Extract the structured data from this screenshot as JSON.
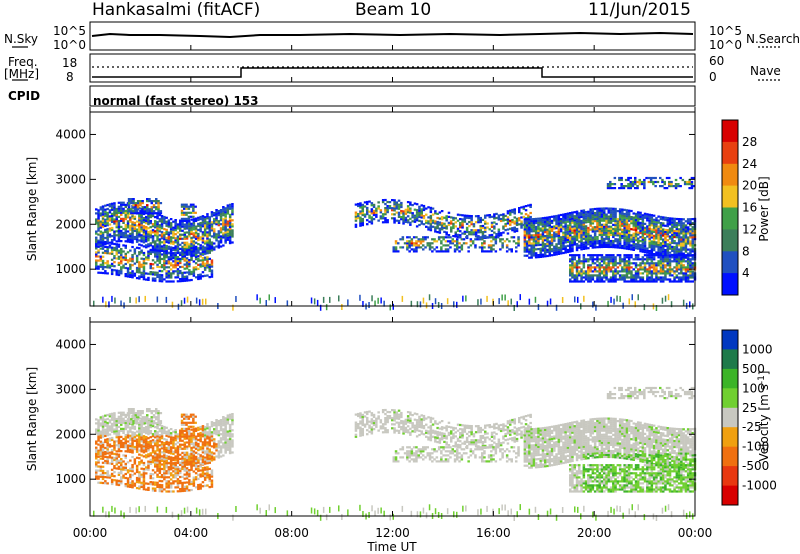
{
  "header": {
    "station": "Hankasalmi (fitACF)",
    "beam": "Beam 10",
    "date": "11/Jun/2015"
  },
  "panel_labels": {
    "nsky": "N.Sky",
    "nsky_hi": "10^5",
    "nsky_lo": "10^0",
    "nsearch": "N.Search",
    "nsearch_hi": "10^5",
    "nsearch_lo": "10^0",
    "freq": "Freq.",
    "freq_unit": "[MHz]",
    "freq_hi": "18",
    "freq_lo": "8",
    "nave": "Nave",
    "nave_hi": "60",
    "nave_lo": "0",
    "cpid": "CPID",
    "cpid_text": "normal (fast stereo) 153"
  },
  "colors": {
    "power_scale": [
      "#0010ff",
      "#2050c0",
      "#3c7e5a",
      "#40a048",
      "#f2c020",
      "#f08a10",
      "#e84010",
      "#d80000"
    ],
    "velocity_scale": [
      "#0038c0",
      "#1e7a4a",
      "#3cb428",
      "#70d030",
      "#c8c8c0",
      "#f0a010",
      "#f07010",
      "#e83810",
      "#d80000"
    ]
  },
  "chart_data": [
    {
      "type": "heatmap",
      "name": "power",
      "ylabel": "Slant Range [km]",
      "xlabel": "",
      "x_ticks": [
        "00:00",
        "04:00",
        "08:00",
        "12:00",
        "16:00",
        "20:00",
        "00:00"
      ],
      "y_ticks": [
        "1000",
        "2000",
        "3000",
        "4000"
      ],
      "ylim": [
        180,
        4500
      ],
      "xlim": [
        0,
        24
      ],
      "colorbar_label": "Power [dB]",
      "colorbar_ticks": [
        "4",
        "8",
        "12",
        "16",
        "20",
        "24",
        "28"
      ],
      "colorbar_range": [
        0,
        30
      ]
    },
    {
      "type": "heatmap",
      "name": "velocity",
      "ylabel": "Slant Range [km]",
      "xlabel": "Time UT",
      "x_ticks": [
        "00:00",
        "04:00",
        "08:00",
        "12:00",
        "16:00",
        "20:00",
        "00:00"
      ],
      "y_ticks": [
        "1000",
        "2000",
        "3000",
        "4000"
      ],
      "ylim": [
        180,
        4500
      ],
      "xlim": [
        0,
        24
      ],
      "colorbar_label": "Velocity [m s^-1]",
      "colorbar_ticks": [
        "1000",
        "500",
        "100",
        "25",
        "-25",
        "-100",
        "-500",
        "-1000"
      ]
    }
  ]
}
